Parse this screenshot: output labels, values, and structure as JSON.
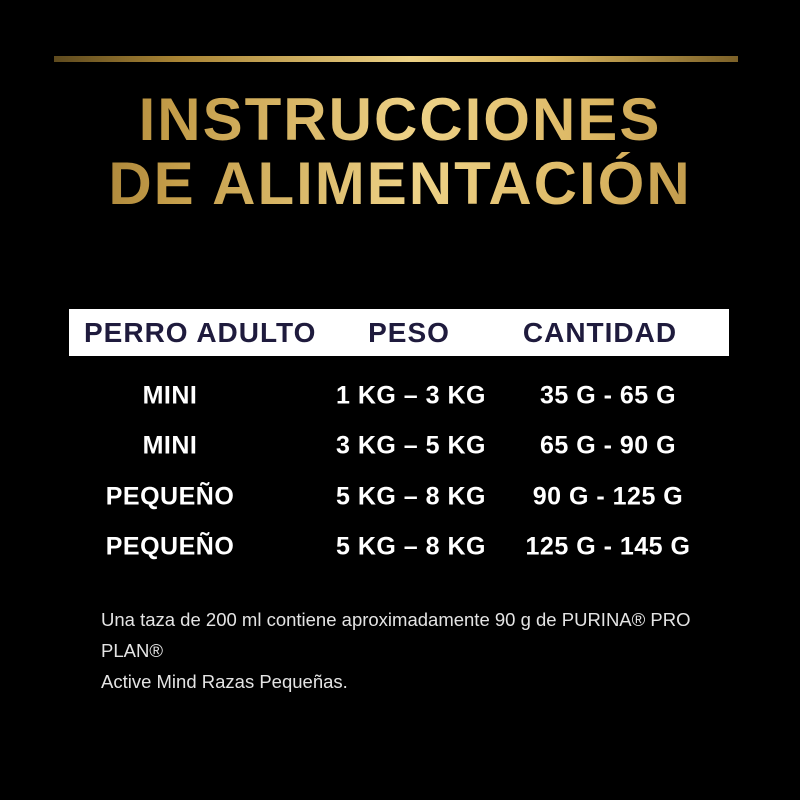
{
  "title": {
    "line1": "INSTRUCCIONES",
    "line2": "DE ALIMENTACIÓN"
  },
  "table": {
    "headers": [
      "PERRO ADULTO",
      "PESO",
      "CANTIDAD"
    ],
    "rows": [
      {
        "size": "MINI",
        "weight": "1 KG – 3 KG",
        "amount": "35 G - 65 G"
      },
      {
        "size": "MINI",
        "weight": "3 KG – 5 KG",
        "amount": "65 G - 90 G"
      },
      {
        "size": "PEQUEÑO",
        "weight": "5 KG – 8 KG",
        "amount": "90 G - 125 G"
      },
      {
        "size": "PEQUEÑO",
        "weight": "5 KG – 8 KG",
        "amount": "125 G - 145 G"
      }
    ]
  },
  "footnote": {
    "lines": [
      "Una taza de 200 ml contiene aproximadamente 90 g de PURINA® PRO PLAN®",
      "Active Mind Razas Pequeñas."
    ]
  },
  "colors": {
    "background": "#000000",
    "gold_dark": "#8c6827",
    "gold_bright": "#eed287",
    "gold_mid": "#d9b55e",
    "header_bar_bg": "#ffffff",
    "header_text": "#1f1b3d",
    "row_text": "#ffffff",
    "footnote_text": "#e4e4e4"
  }
}
